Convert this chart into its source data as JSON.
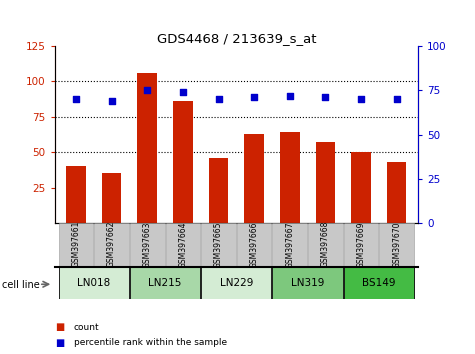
{
  "title": "GDS4468 / 213639_s_at",
  "samples": [
    "GSM397661",
    "GSM397662",
    "GSM397663",
    "GSM397664",
    "GSM397665",
    "GSM397666",
    "GSM397667",
    "GSM397668",
    "GSM397669",
    "GSM397670"
  ],
  "counts": [
    40,
    35,
    106,
    86,
    46,
    63,
    64,
    57,
    50,
    43
  ],
  "percentile_ranks": [
    70,
    69,
    75,
    74,
    70,
    71,
    72,
    71,
    70,
    70
  ],
  "cell_lines": [
    {
      "label": "LN018",
      "samples": [
        "GSM397661",
        "GSM397662"
      ],
      "color": "#d4ecd4"
    },
    {
      "label": "LN215",
      "samples": [
        "GSM397663",
        "GSM397664"
      ],
      "color": "#a8d8a8"
    },
    {
      "label": "LN229",
      "samples": [
        "GSM397665",
        "GSM397666"
      ],
      "color": "#d4ecd4"
    },
    {
      "label": "LN319",
      "samples": [
        "GSM397667",
        "GSM397668"
      ],
      "color": "#7dc87d"
    },
    {
      "label": "BS149",
      "samples": [
        "GSM397669",
        "GSM397670"
      ],
      "color": "#44bb44"
    }
  ],
  "bar_color": "#cc2200",
  "dot_color": "#0000cc",
  "bar_width": 0.55,
  "ylim_left": [
    0,
    125
  ],
  "ylim_right": [
    0,
    100
  ],
  "yticks_left": [
    25,
    50,
    75,
    100,
    125
  ],
  "yticks_right": [
    0,
    25,
    50,
    75,
    100
  ],
  "dotted_lines": [
    50,
    75,
    100
  ],
  "background_color": "#ffffff",
  "sample_box_color": "#c8c8c8",
  "legend_count_color": "#cc2200",
  "legend_dot_color": "#0000cc"
}
